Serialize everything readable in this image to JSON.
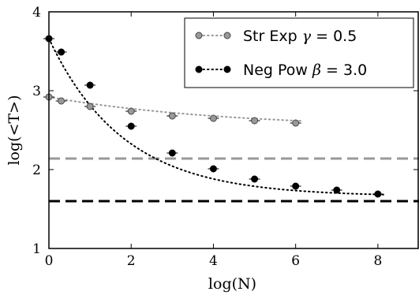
{
  "chart_data": {
    "type": "line",
    "xlabel": "log(N)",
    "ylabel": "log(<T>)",
    "xlim": [
      0,
      9
    ],
    "ylim": [
      1,
      4
    ],
    "x_ticks": [
      0,
      2,
      4,
      6,
      8
    ],
    "y_ticks": [
      1,
      2,
      3,
      4
    ],
    "grid": false,
    "legend_position": "top-right",
    "series": [
      {
        "name": "Str Exp γ = 0.5",
        "name_prefix": "Str Exp ",
        "name_symbol": "γ",
        "name_suffix": " = 0.5",
        "color": "#999999",
        "marker_edge": "#444444",
        "line_style": "dotted",
        "x": [
          0,
          0.3,
          1,
          2,
          3,
          4,
          5,
          6
        ],
        "y": [
          2.92,
          2.87,
          2.8,
          2.74,
          2.68,
          2.65,
          2.62,
          2.59
        ],
        "fit": {
          "kind": "exp_decay",
          "c": 2.52,
          "a": 0.4,
          "k": 0.23,
          "x_range": [
            0,
            6.15
          ]
        }
      },
      {
        "name": "Neg Pow β = 3.0",
        "name_prefix": "Neg Pow ",
        "name_symbol": "β",
        "name_suffix": " = 3.0",
        "color": "#000000",
        "marker_edge": "#000000",
        "line_style": "dotted",
        "x": [
          0,
          0.3,
          1,
          2,
          3,
          4,
          5,
          6,
          7,
          8
        ],
        "y": [
          3.66,
          3.49,
          3.07,
          2.55,
          2.21,
          2.01,
          1.88,
          1.79,
          1.74,
          1.69
        ],
        "fit": {
          "kind": "exp_decay",
          "c": 1.66,
          "a": 2.0,
          "k": 0.55,
          "x_range": [
            0,
            8.15
          ]
        }
      }
    ],
    "reference_lines": [
      {
        "y": 2.14,
        "color": "#999999",
        "style": "dashed"
      },
      {
        "y": 1.6,
        "color": "#000000",
        "style": "dashed"
      }
    ]
  }
}
